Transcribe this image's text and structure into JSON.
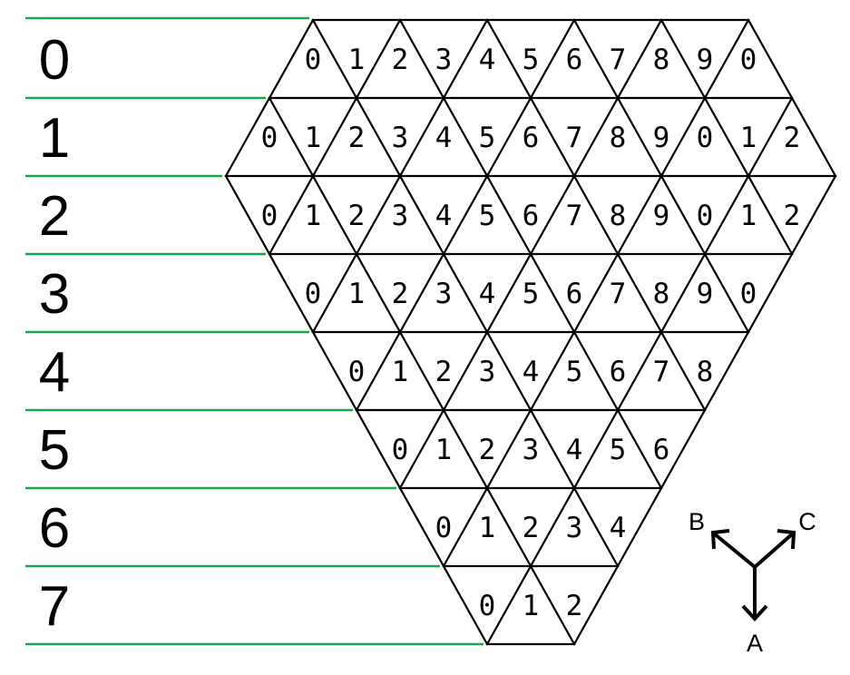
{
  "rows": [
    {
      "label": "0",
      "cells": [
        "0",
        "1",
        "2",
        "3",
        "4",
        "5",
        "6",
        "7",
        "8",
        "9",
        "0"
      ]
    },
    {
      "label": "1",
      "cells": [
        "0",
        "1",
        "2",
        "3",
        "4",
        "5",
        "6",
        "7",
        "8",
        "9",
        "0",
        "1",
        "2"
      ]
    },
    {
      "label": "2",
      "cells": [
        "0",
        "1",
        "2",
        "3",
        "4",
        "5",
        "6",
        "7",
        "8",
        "9",
        "0",
        "1",
        "2"
      ]
    },
    {
      "label": "3",
      "cells": [
        "0",
        "1",
        "2",
        "3",
        "4",
        "5",
        "6",
        "7",
        "8",
        "9",
        "0"
      ]
    },
    {
      "label": "4",
      "cells": [
        "0",
        "1",
        "2",
        "3",
        "4",
        "5",
        "6",
        "7",
        "8"
      ]
    },
    {
      "label": "5",
      "cells": [
        "0",
        "1",
        "2",
        "3",
        "4",
        "5",
        "6"
      ]
    },
    {
      "label": "6",
      "cells": [
        "0",
        "1",
        "2",
        "3",
        "4"
      ]
    },
    {
      "label": "7",
      "cells": [
        "0",
        "1",
        "2"
      ]
    }
  ],
  "axes": {
    "a": "A",
    "b": "B",
    "c": "C"
  },
  "colors": {
    "guide": "#1aa64a",
    "lines": "#000000"
  }
}
